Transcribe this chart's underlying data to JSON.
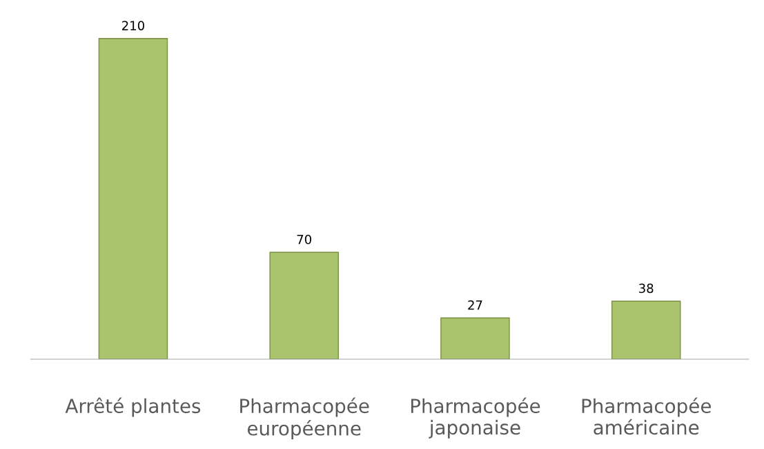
{
  "chart_data": {
    "type": "bar",
    "categories": [
      "Arrêté plantes",
      "Pharmacopée\neuropéenne",
      "Pharmacopée\njaponaise",
      "Pharmacopée\naméricaine"
    ],
    "values": [
      210,
      70,
      27,
      38
    ],
    "color": "#a9c46c",
    "data_labels": true,
    "grid": false,
    "legend": false
  }
}
